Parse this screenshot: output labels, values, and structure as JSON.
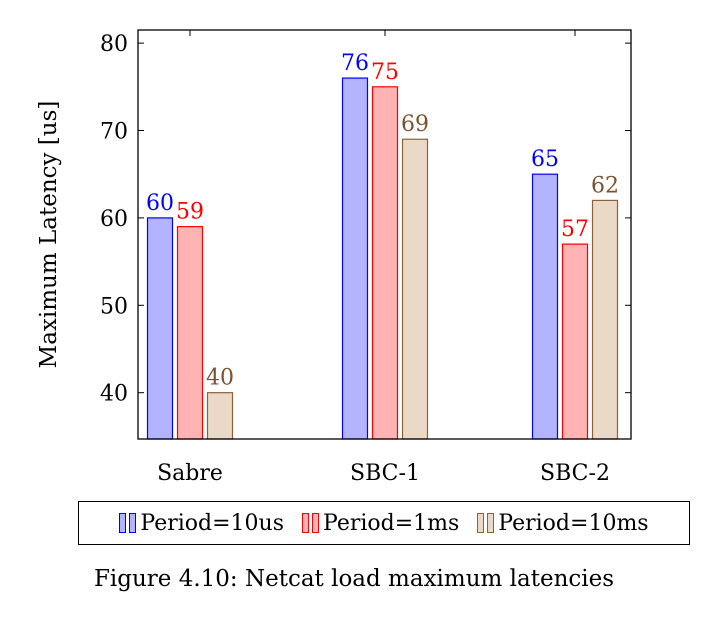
{
  "chart_data": {
    "type": "bar",
    "categories": [
      "Sabre",
      "SBC-1",
      "SBC-2"
    ],
    "series": [
      {
        "name": "Period=10us",
        "values": [
          60,
          76,
          65
        ],
        "fill": "#b3b3ff",
        "stroke": "#0000ff",
        "label_color": "#0000ff"
      },
      {
        "name": "Period=1ms",
        "values": [
          59,
          75,
          57
        ],
        "fill": "#ffb3b3",
        "stroke": "#ff0000",
        "label_color": "#ff0000"
      },
      {
        "name": "Period=10ms",
        "values": [
          40,
          69,
          62
        ],
        "fill": "#ead9c6",
        "stroke": "#8c6239",
        "label_color": "#7a5230"
      }
    ],
    "ylabel": "Maximum Latency [us]",
    "xlabel": "",
    "ylim": [
      34.7,
      81.5
    ],
    "yticks": [
      40,
      50,
      60,
      70,
      80
    ],
    "grid": false,
    "legend_position": "bottom"
  },
  "caption": "Figure 4.10: Netcat load maximum latencies"
}
